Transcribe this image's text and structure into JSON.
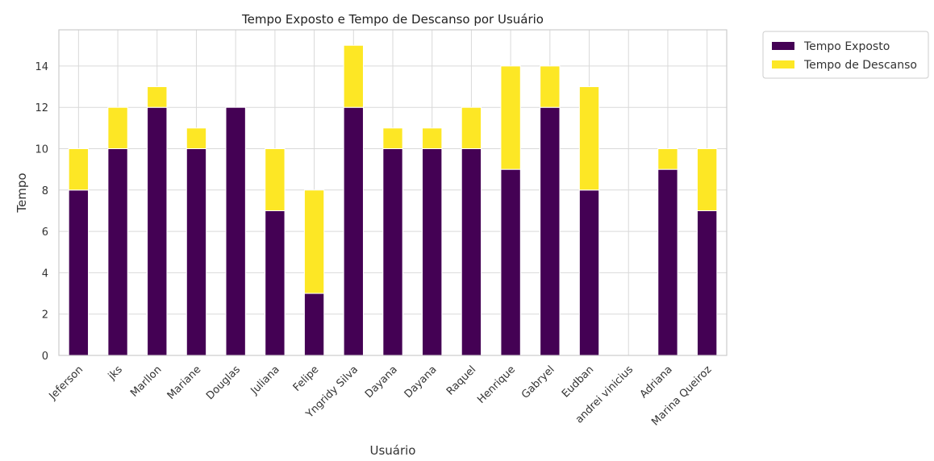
{
  "chart_data": {
    "type": "bar",
    "stacked": true,
    "title": "Tempo Exposto e Tempo de Descanso por Usuário",
    "xlabel": "Usuário",
    "ylabel": "Tempo",
    "ylim": [
      0,
      15.75
    ],
    "yticks": [
      0,
      2,
      4,
      6,
      8,
      10,
      12,
      14
    ],
    "grid": true,
    "legend_position": "outside-top-right",
    "categories": [
      "Jeferson",
      "jks",
      "Marllon",
      "Mariane",
      "Douglas",
      "Juliana",
      "Felipe",
      "Yngridy Silva",
      "Dayana",
      "Dayana",
      "Raquel",
      "Henrique",
      "Gabryel",
      "Eudban",
      "andrei vinicius",
      "Adriana",
      "Marina Queiroz"
    ],
    "series": [
      {
        "name": "Tempo Exposto",
        "color": "#440154",
        "values": [
          8,
          10,
          12,
          10,
          12,
          7,
          3,
          12,
          10,
          10,
          10,
          9,
          12,
          8,
          0,
          9,
          7
        ]
      },
      {
        "name": "Tempo de Descanso",
        "color": "#fde725",
        "values": [
          2,
          2,
          1,
          1,
          0,
          3,
          5,
          3,
          1,
          1,
          2,
          5,
          2,
          5,
          0,
          1,
          3
        ]
      }
    ]
  }
}
